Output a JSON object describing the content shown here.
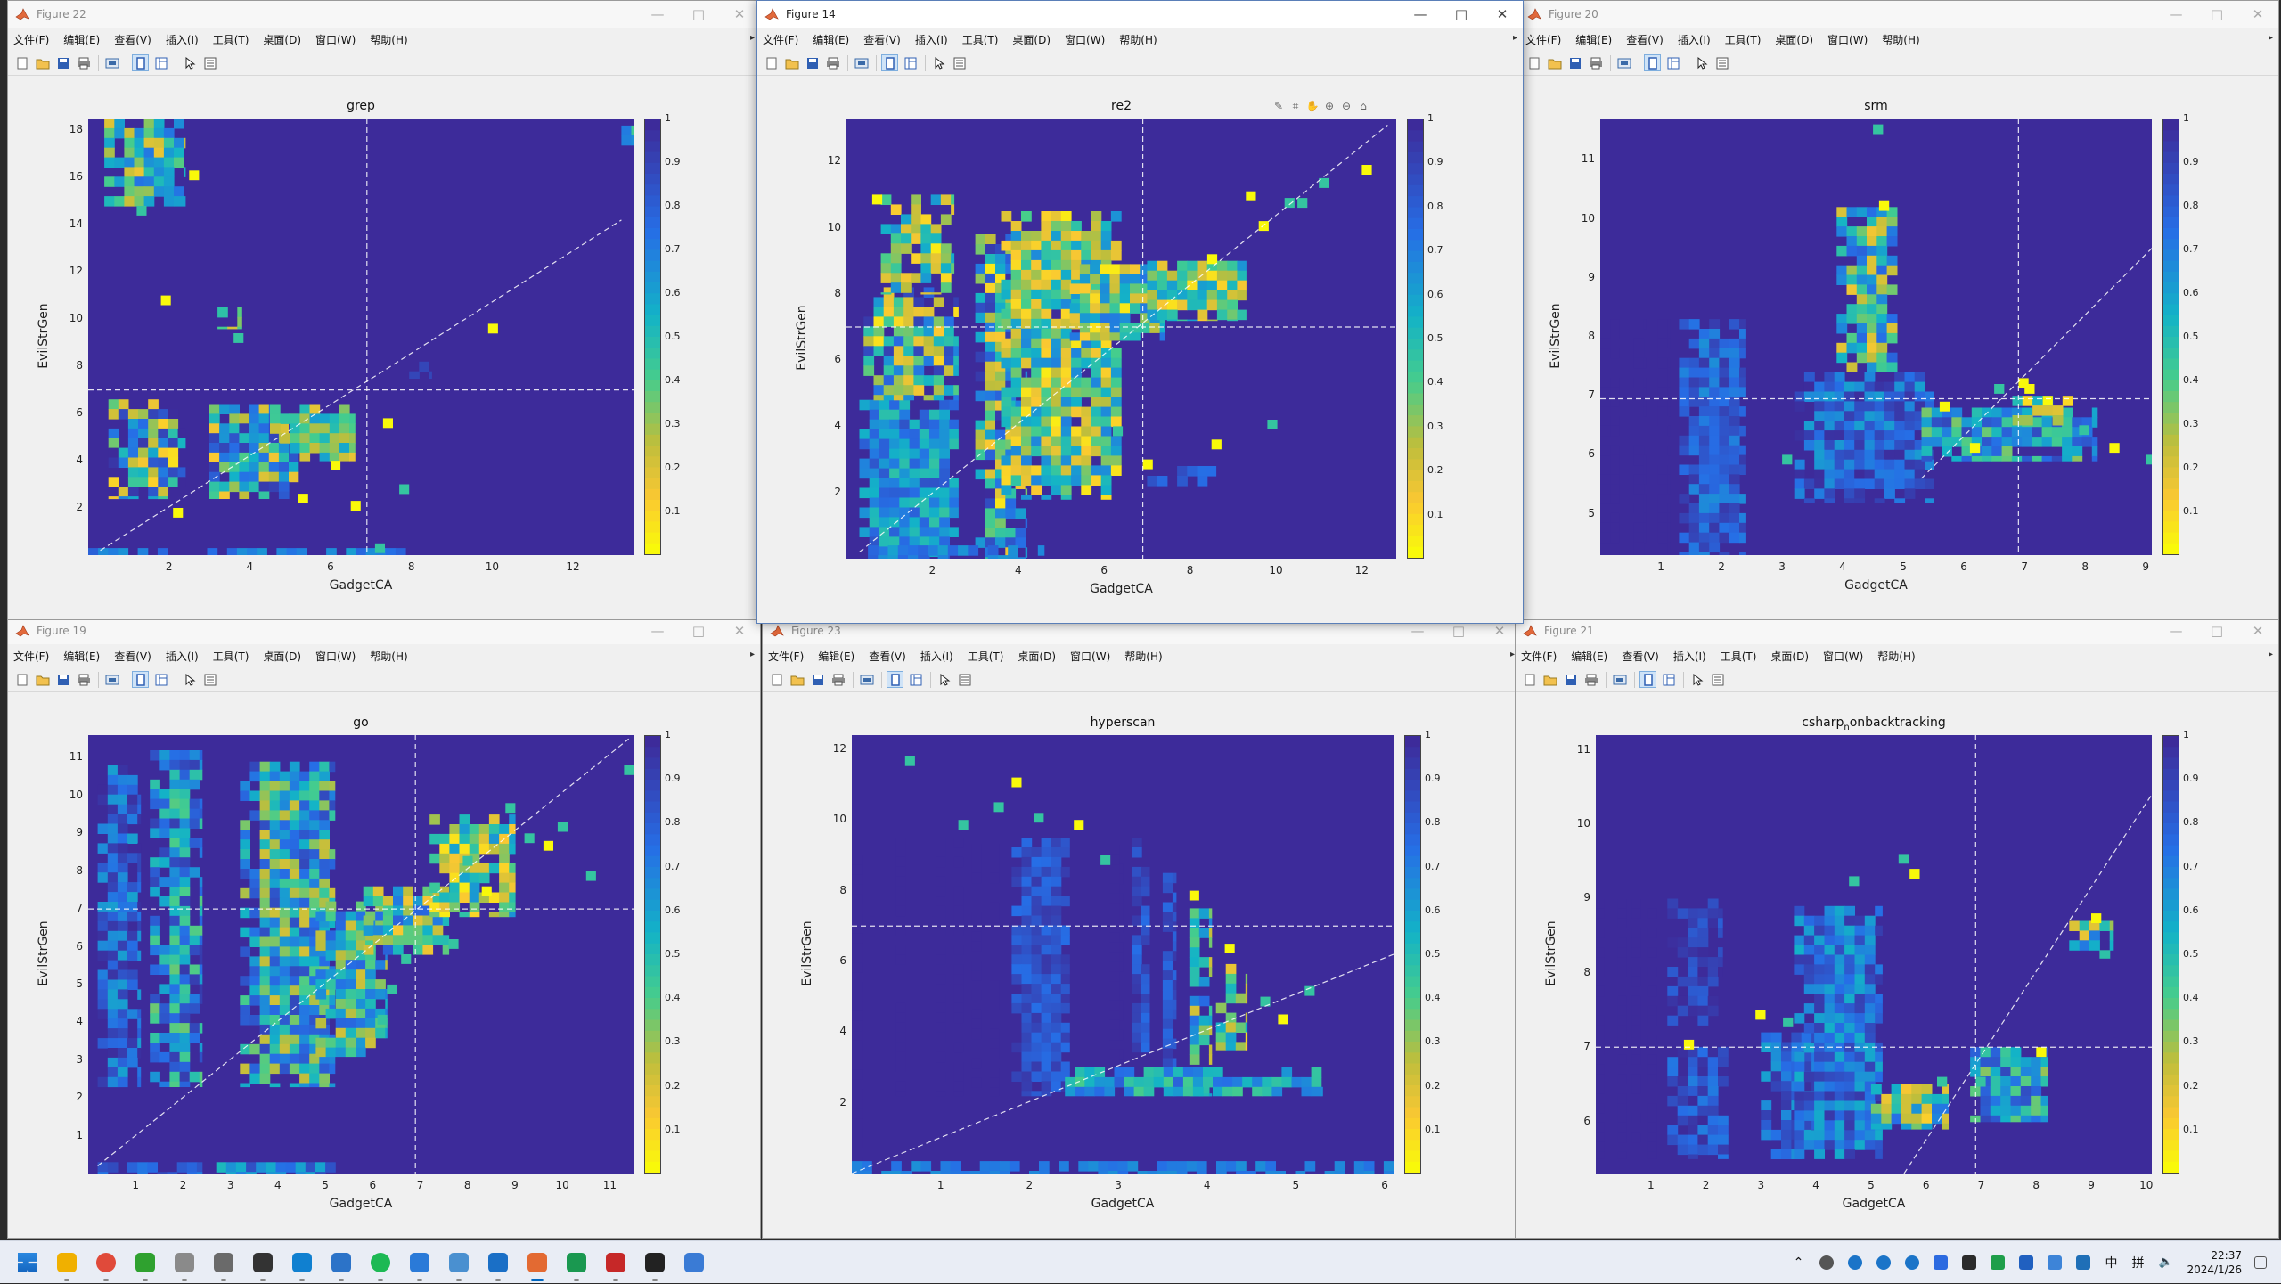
{
  "figures": [
    {
      "window_title": "Figure 22",
      "state": "inactive",
      "plot": {
        "title": "grep",
        "title_suffix": "",
        "xlabel": "GadgetCA",
        "ylabel": "EvilStrGen",
        "xlim": [
          0,
          13.5
        ],
        "ylim": [
          0,
          18.5
        ],
        "xticks": [
          2,
          4,
          6,
          8,
          10,
          12
        ],
        "yticks": [
          2,
          4,
          6,
          8,
          10,
          12,
          14,
          16,
          18
        ],
        "vline": 6.9,
        "hline": 7.0,
        "diag": [
          [
            0.3,
            0.2
          ],
          [
            13.2,
            14.2
          ]
        ],
        "regions": [
          [
            0.5,
            2.4,
            2.4,
            6.6,
            0.55,
            0.5,
            6
          ],
          [
            3.0,
            5.2,
            2.4,
            6.4,
            0.55,
            0.45,
            1
          ],
          [
            0.4,
            2.4,
            14.8,
            18.5,
            0.45,
            0.3,
            2
          ],
          [
            4.5,
            6.6,
            4.0,
            6.4,
            0.4,
            0.25,
            3
          ],
          [
            7.7,
            8.5,
            7.5,
            8.2,
            0.9,
            0.0,
            4
          ],
          [
            0.0,
            8.0,
            0.0,
            0.3,
            0.7,
            0.1,
            5
          ],
          [
            3.2,
            3.8,
            9.6,
            10.5,
            0.35,
            0.2,
            7
          ],
          [
            13.2,
            13.5,
            17.2,
            18.2,
            0.6,
            0.2,
            8
          ]
        ],
        "scatter": [
          [
            1.2,
            14.8
          ],
          [
            1.8,
            11.0
          ],
          [
            3.6,
            9.4
          ],
          [
            9.9,
            9.8
          ],
          [
            6.0,
            4.0
          ],
          [
            6.5,
            2.3
          ],
          [
            7.7,
            3.0
          ],
          [
            5.2,
            2.6
          ],
          [
            7.3,
            5.8
          ],
          [
            2.1,
            2.0
          ],
          [
            7.1,
            0.5
          ],
          [
            2.5,
            16.3
          ]
        ]
      }
    },
    {
      "window_title": "Figure 14",
      "state": "active",
      "plot": {
        "title": "re2",
        "title_suffix": "",
        "xlabel": "GadgetCA",
        "ylabel": "EvilStrGen",
        "xlim": [
          0,
          12.8
        ],
        "ylim": [
          0,
          13.3
        ],
        "xticks": [
          2,
          4,
          6,
          8,
          10,
          12
        ],
        "yticks": [
          2,
          4,
          6,
          8,
          10,
          12
        ],
        "vline": 6.9,
        "hline": 7.0,
        "diag": [
          [
            0.3,
            0.2
          ],
          [
            12.6,
            13.1
          ]
        ],
        "regions": [
          [
            0.3,
            2.6,
            0.0,
            4.8,
            0.65,
            0.2,
            1
          ],
          [
            0.4,
            2.6,
            4.8,
            8.2,
            0.45,
            0.5,
            2
          ],
          [
            3.0,
            4.2,
            0.0,
            9.8,
            0.5,
            0.5,
            3
          ],
          [
            3.6,
            6.4,
            1.8,
            10.5,
            0.35,
            0.35,
            4
          ],
          [
            5.2,
            7.4,
            6.6,
            8.9,
            0.35,
            0.4,
            5
          ],
          [
            7.0,
            8.6,
            2.2,
            2.8,
            0.8,
            0.1,
            6
          ],
          [
            7.0,
            9.3,
            7.2,
            9.0,
            0.35,
            0.3,
            7
          ],
          [
            0.5,
            4.6,
            0.0,
            0.4,
            0.7,
            0.1,
            8
          ],
          [
            0.8,
            2.5,
            8.0,
            11.0,
            0.25,
            0.4,
            9
          ]
        ],
        "scatter": [
          [
            11.0,
            11.5
          ],
          [
            12.0,
            11.9
          ],
          [
            10.5,
            10.9
          ],
          [
            9.6,
            10.2
          ],
          [
            8.4,
            9.2
          ],
          [
            9.8,
            4.2
          ],
          [
            8.5,
            3.6
          ],
          [
            6.9,
            3.0
          ],
          [
            6.2,
            4.0
          ],
          [
            0.6,
            11.0
          ],
          [
            9.3,
            11.1
          ],
          [
            10.2,
            10.9
          ]
        ]
      }
    },
    {
      "window_title": "Figure 20",
      "state": "inactive",
      "plot": {
        "title": "srm",
        "title_suffix": "",
        "xlabel": "GadgetCA",
        "ylabel": "EvilStrGen",
        "xlim": [
          0,
          9.1
        ],
        "ylim": [
          4.3,
          11.7
        ],
        "xticks": [
          1,
          2,
          3,
          4,
          5,
          6,
          7,
          8,
          9
        ],
        "yticks": [
          5,
          6,
          7,
          8,
          9,
          10,
          11
        ],
        "vline": 6.9,
        "hline": 6.95,
        "diag": [
          [
            5.3,
            5.6
          ],
          [
            9.1,
            9.5
          ]
        ],
        "regions": [
          [
            0.0,
            0.3,
            4.3,
            8.3,
            1.0,
            0.0,
            1
          ],
          [
            0.55,
            0.75,
            4.3,
            8.3,
            1.0,
            0.0,
            2
          ],
          [
            0.95,
            1.15,
            4.3,
            8.3,
            1.0,
            0.0,
            3
          ],
          [
            1.3,
            2.4,
            4.3,
            8.3,
            0.8,
            0.15,
            4
          ],
          [
            3.2,
            5.5,
            5.2,
            7.4,
            0.8,
            0.2,
            5
          ],
          [
            3.9,
            4.9,
            7.4,
            10.2,
            0.45,
            0.35,
            6
          ],
          [
            5.3,
            8.2,
            5.9,
            6.8,
            0.6,
            0.3,
            7
          ],
          [
            6.8,
            7.8,
            6.5,
            7.0,
            0.35,
            0.3,
            8
          ]
        ],
        "scatter": [
          [
            4.5,
            11.6
          ],
          [
            4.6,
            10.3
          ],
          [
            7.0,
            7.2
          ],
          [
            7.9,
            6.5
          ],
          [
            9.0,
            6.0
          ],
          [
            6.5,
            7.2
          ],
          [
            8.4,
            6.2
          ],
          [
            7.3,
            7.0
          ],
          [
            5.6,
            6.9
          ],
          [
            3.0,
            6.0
          ],
          [
            6.9,
            7.3
          ],
          [
            6.1,
            6.2
          ]
        ]
      }
    },
    {
      "window_title": "Figure 19",
      "state": "inactive",
      "plot": {
        "title": "go",
        "title_suffix": "",
        "xlabel": "GadgetCA",
        "ylabel": "EvilStrGen",
        "xlim": [
          0,
          11.5
        ],
        "ylim": [
          0,
          11.6
        ],
        "xticks": [
          1,
          2,
          3,
          4,
          5,
          6,
          7,
          8,
          9,
          10,
          11
        ],
        "yticks": [
          1,
          2,
          3,
          4,
          5,
          6,
          7,
          8,
          9,
          10,
          11
        ],
        "vline": 6.9,
        "hline": 7.0,
        "diag": [
          [
            0.2,
            0.2
          ],
          [
            11.4,
            11.5
          ]
        ],
        "regions": [
          [
            0.2,
            1.1,
            2.3,
            10.8,
            0.8,
            0.2,
            1
          ],
          [
            1.3,
            2.4,
            2.3,
            11.2,
            0.65,
            0.3,
            2
          ],
          [
            3.2,
            5.2,
            2.3,
            10.9,
            0.55,
            0.35,
            3
          ],
          [
            4.8,
            6.3,
            3.1,
            7.2,
            0.5,
            0.3,
            4
          ],
          [
            5.8,
            7.6,
            5.8,
            7.6,
            0.45,
            0.35,
            5
          ],
          [
            7.2,
            9.0,
            6.8,
            9.5,
            0.3,
            0.35,
            6
          ],
          [
            0.2,
            2.4,
            0.0,
            0.3,
            0.8,
            0.1,
            7
          ],
          [
            2.7,
            5.5,
            0.0,
            0.3,
            0.7,
            0.2,
            8
          ]
        ],
        "scatter": [
          [
            9.2,
            9.0
          ],
          [
            9.6,
            8.8
          ],
          [
            10.5,
            8.0
          ],
          [
            8.8,
            9.8
          ],
          [
            7.6,
            6.2
          ],
          [
            6.6,
            5.8
          ],
          [
            6.3,
            5.0
          ],
          [
            11.3,
            10.8
          ],
          [
            8.3,
            7.6
          ],
          [
            7.9,
            8.4
          ],
          [
            9.9,
            9.3
          ],
          [
            6.1,
            4.2
          ]
        ]
      }
    },
    {
      "window_title": "Figure 23",
      "state": "inactive",
      "plot": {
        "title": "hyperscan",
        "title_suffix": "",
        "xlabel": "GadgetCA",
        "ylabel": "EvilStrGen",
        "xlim": [
          0,
          6.1
        ],
        "ylim": [
          0,
          12.4
        ],
        "xticks": [
          1,
          2,
          3,
          4,
          5,
          6
        ],
        "yticks": [
          2,
          4,
          6,
          8,
          10,
          12
        ],
        "vline": -1,
        "hline": 7.0,
        "diag": [
          [
            0.0,
            0.0
          ],
          [
            6.1,
            6.2
          ]
        ],
        "regions": [
          [
            0.0,
            0.12,
            0.0,
            9.0,
            1.0,
            0.0,
            1
          ],
          [
            0.5,
            0.6,
            2.2,
            9.5,
            1.0,
            0.0,
            2
          ],
          [
            0.95,
            1.05,
            2.2,
            9.5,
            1.0,
            0.0,
            3
          ],
          [
            1.15,
            1.25,
            2.2,
            9.5,
            1.0,
            0.0,
            4
          ],
          [
            1.35,
            1.45,
            2.2,
            9.6,
            1.0,
            0.0,
            5
          ],
          [
            1.55,
            1.65,
            2.2,
            9.6,
            1.0,
            0.0,
            6
          ],
          [
            1.8,
            2.45,
            2.2,
            9.5,
            0.85,
            0.1,
            7
          ],
          [
            2.9,
            3.05,
            2.2,
            9.3,
            1.0,
            0.0,
            8
          ],
          [
            3.15,
            3.35,
            2.2,
            9.5,
            0.85,
            0.1,
            9
          ],
          [
            3.5,
            3.65,
            2.2,
            8.5,
            0.85,
            0.1,
            10
          ],
          [
            3.8,
            4.05,
            2.2,
            7.5,
            0.5,
            0.3,
            11
          ],
          [
            4.1,
            4.45,
            3.5,
            6.2,
            0.25,
            0.35,
            12
          ],
          [
            2.4,
            5.3,
            2.2,
            3.0,
            0.6,
            0.2,
            13
          ],
          [
            0.0,
            6.1,
            0.0,
            0.35,
            0.7,
            0.05,
            14
          ]
        ],
        "scatter": [
          [
            0.6,
            11.8
          ],
          [
            1.8,
            11.2
          ],
          [
            1.6,
            10.5
          ],
          [
            2.05,
            10.2
          ],
          [
            4.6,
            5.0
          ],
          [
            4.8,
            4.5
          ],
          [
            5.1,
            5.3
          ],
          [
            2.5,
            10.0
          ],
          [
            3.8,
            8.0
          ],
          [
            4.2,
            6.5
          ],
          [
            1.2,
            10.0
          ],
          [
            2.8,
            9.0
          ]
        ]
      }
    },
    {
      "window_title": "Figure 21",
      "state": "inactive",
      "plot": {
        "title": "csharp",
        "title_suffix": "onbacktracking",
        "xlabel": "GadgetCA",
        "ylabel": "EvilStrGen",
        "xlim": [
          0,
          10.1
        ],
        "ylim": [
          5.3,
          11.2
        ],
        "xticks": [
          1,
          2,
          3,
          4,
          5,
          6,
          7,
          8,
          9,
          10
        ],
        "yticks": [
          6,
          7,
          8,
          9,
          10,
          11
        ],
        "vline": 6.9,
        "hline": 7.0,
        "diag": [
          [
            5.6,
            5.3
          ],
          [
            10.1,
            10.4
          ]
        ],
        "regions": [
          [
            0.0,
            0.15,
            5.5,
            9.0,
            1.0,
            0.0,
            1
          ],
          [
            0.4,
            0.55,
            5.5,
            9.0,
            1.0,
            0.0,
            2
          ],
          [
            0.65,
            0.8,
            5.5,
            9.0,
            1.0,
            0.0,
            3
          ],
          [
            0.95,
            1.1,
            5.5,
            9.0,
            1.0,
            0.0,
            4
          ],
          [
            1.3,
            2.3,
            7.3,
            9.0,
            0.9,
            0.1,
            5
          ],
          [
            1.3,
            2.4,
            5.5,
            7.0,
            0.85,
            0.15,
            6
          ],
          [
            3.0,
            4.2,
            5.5,
            7.2,
            0.8,
            0.2,
            7
          ],
          [
            3.6,
            5.2,
            5.5,
            8.9,
            0.75,
            0.2,
            8
          ],
          [
            5.0,
            6.4,
            5.9,
            6.5,
            0.45,
            0.35,
            9
          ],
          [
            6.8,
            8.2,
            6.0,
            7.0,
            0.6,
            0.3,
            10
          ],
          [
            8.6,
            9.4,
            8.2,
            8.7,
            0.45,
            0.3,
            11
          ]
        ],
        "scatter": [
          [
            5.5,
            9.6
          ],
          [
            5.7,
            9.4
          ],
          [
            4.6,
            9.3
          ],
          [
            8.0,
            7.0
          ],
          [
            6.9,
            6.6
          ],
          [
            9.0,
            8.8
          ],
          [
            6.2,
            6.6
          ],
          [
            2.9,
            7.5
          ],
          [
            3.4,
            7.4
          ],
          [
            1.6,
            7.1
          ]
        ]
      }
    }
  ],
  "menu": [
    "文件(F)",
    "编辑(E)",
    "查看(V)",
    "插入(I)",
    "工具(T)",
    "桌面(D)",
    "窗口(W)",
    "帮助(H)"
  ],
  "colorbar_ticks": [
    "1",
    "0.9",
    "0.8",
    "0.7",
    "0.6",
    "0.5",
    "0.4",
    "0.3",
    "0.2",
    "0.1"
  ],
  "colors": {
    "low": "#3d2b9a",
    "high": "#f9f90a",
    "grid_line": "#ffffff"
  },
  "taskbar": {
    "apps": [
      "start-icon",
      "file-explorer-icon",
      "chrome-icon",
      "wechat-icon",
      "app-icon",
      "monitor-icon",
      "terminal-icon",
      "app-icon",
      "notepad-icon",
      "spotify-icon",
      "vscode-icon",
      "app-icon",
      "outlook-icon",
      "matlab-icon",
      "app-icon",
      "app-icon",
      "typora-icon",
      "app-icon"
    ],
    "ime_lang": "中",
    "ime_mode": "拼",
    "time": "22:37",
    "date": "2024/1/26"
  }
}
